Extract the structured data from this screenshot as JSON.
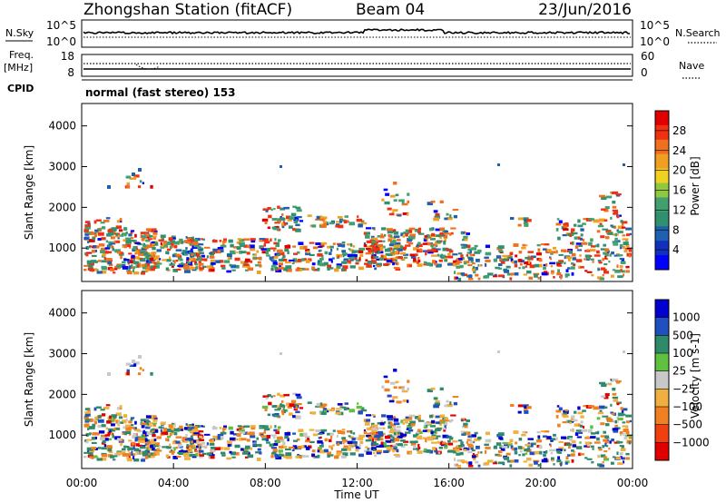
{
  "header": {
    "station": "Zhongshan Station (fitACF)",
    "beam": "Beam 04",
    "date": "23/Jun/2016"
  },
  "summary_panels": {
    "nsky": {
      "label": "N.Sky",
      "tick_top": "10^5",
      "tick_bottom": "10^0"
    },
    "nsearch": {
      "label": "N.Search",
      "tick_top": "10^5",
      "tick_bottom": "10^0"
    },
    "freq": {
      "label_line1": "Freq.",
      "label_line2": "[MHz]",
      "tick_top": "18",
      "tick_bottom": "8"
    },
    "nave": {
      "label": "Nave",
      "tick_top": "60",
      "tick_bottom": "0"
    },
    "cpid": {
      "label": "CPID",
      "value": "normal (fast stereo) 153"
    }
  },
  "chart_data": [
    {
      "type": "heatmap",
      "name": "power",
      "ylabel": "Slant Range [km]",
      "xlabel": "",
      "ylim": [
        180,
        4550
      ],
      "y_ticks": [
        1000,
        2000,
        3000,
        4000
      ],
      "colorbar": {
        "label": "Power [dB]",
        "ticks": [
          "28",
          "24",
          "20",
          "16",
          "12",
          "8",
          "4"
        ],
        "colors": [
          "#e00000",
          "#f03010",
          "#f07020",
          "#f0a020",
          "#f0d020",
          "#90c840",
          "#40a070",
          "#309070",
          "#2060b0",
          "#1030c0",
          "#0000ff"
        ]
      }
    },
    {
      "type": "heatmap",
      "name": "velocity",
      "ylabel": "Slant Range [km]",
      "xlabel": "Time UT",
      "ylim": [
        180,
        4550
      ],
      "y_ticks": [
        1000,
        2000,
        3000,
        4000
      ],
      "x_ticks": [
        "00:00",
        "04:00",
        "08:00",
        "12:00",
        "16:00",
        "20:00",
        "00:00"
      ],
      "colorbar": {
        "label": "Velocity [m s-1]",
        "ticks": [
          "1000",
          "500",
          "100",
          "25",
          "−25",
          "−100",
          "−500",
          "−1000"
        ],
        "colors": [
          "#0000d0",
          "#2050c0",
          "#2e8a6a",
          "#60c040",
          "#c8c8c8",
          "#f0b040",
          "#f08020",
          "#f04010",
          "#e00000"
        ]
      }
    }
  ]
}
